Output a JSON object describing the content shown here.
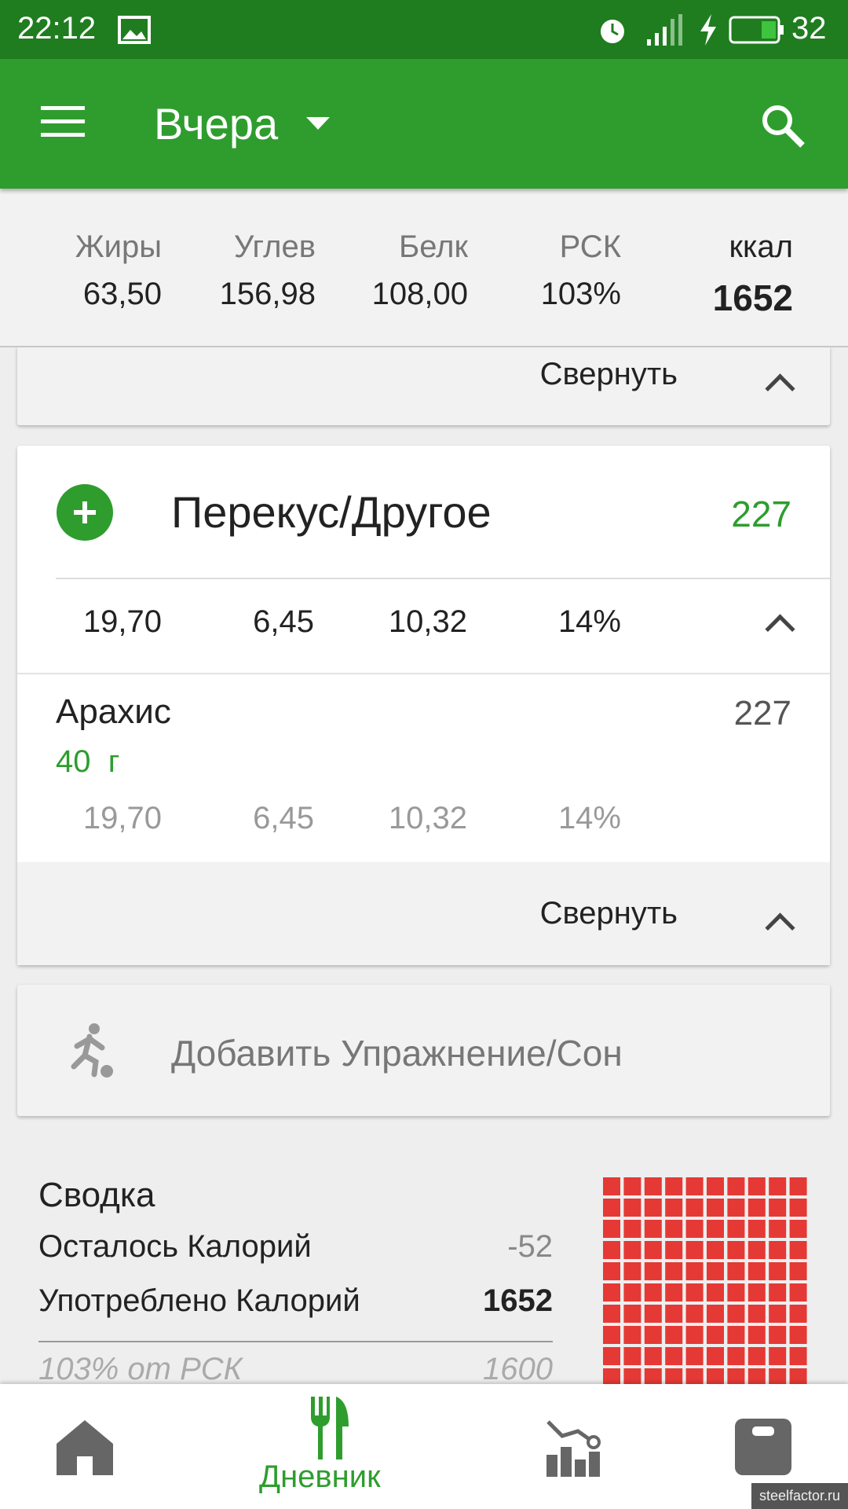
{
  "status_bar": {
    "time": "22:12",
    "battery": "32"
  },
  "app_bar": {
    "title": "Вчера"
  },
  "totals": {
    "labels": [
      "Жиры",
      "Углев",
      "Белк",
      "РСК",
      "ккал"
    ],
    "values": [
      "63,50",
      "156,98",
      "108,00",
      "103%",
      "1652"
    ]
  },
  "collapsed_card": {
    "collapse": "Свернуть"
  },
  "meal": {
    "title": "Перекус/Другое",
    "kcal": "227",
    "totals": [
      "19,70",
      "6,45",
      "10,32",
      "14%"
    ],
    "items": [
      {
        "name": "Арахис",
        "amount": "40  г",
        "kcal": "227",
        "values": [
          "19,70",
          "6,45",
          "10,32",
          "14%"
        ]
      }
    ],
    "collapse": "Свернуть"
  },
  "exercise": {
    "label": "Добавить Упражнение/Сон"
  },
  "summary": {
    "title": "Сводка",
    "rows": [
      [
        "Осталось Калорий",
        "-52"
      ],
      [
        "Употреблено Калорий",
        "1652"
      ],
      [
        "103% от РСК",
        "1600"
      ]
    ]
  },
  "bottom_nav": {
    "active": "Дневник"
  },
  "watermark": "steelfactor.ru"
}
